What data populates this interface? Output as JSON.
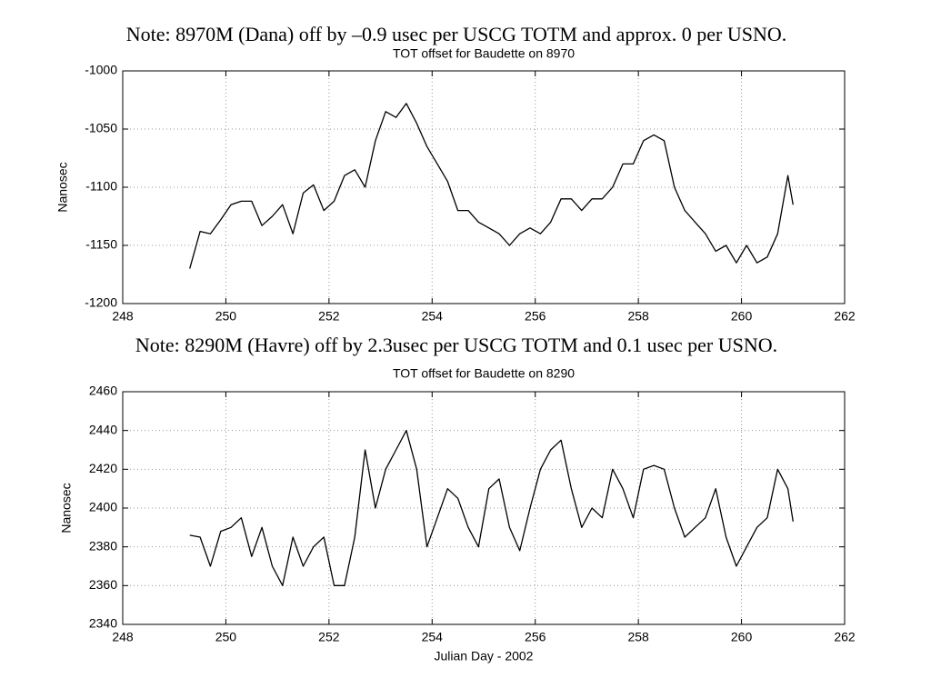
{
  "chart_data": [
    {
      "type": "line",
      "annotations": [
        "Note: 8970M (Dana) off by –0.9 usec per USCG TOTM and approx. 0  per USNO."
      ],
      "title": "TOT offset for Baudette on 8970",
      "ylabel": "Nanosec",
      "color": "#000000",
      "grid": true,
      "xlim": [
        248,
        262
      ],
      "xticks": [
        248,
        250,
        252,
        254,
        256,
        258,
        260,
        262
      ],
      "ylim": [
        -1200,
        -1000
      ],
      "yticks": [
        -1200,
        -1150,
        -1100,
        -1050,
        -1000
      ],
      "x": [
        249.3,
        249.5,
        249.7,
        249.9,
        250.1,
        250.3,
        250.5,
        250.7,
        250.9,
        251.1,
        251.3,
        251.5,
        251.7,
        251.9,
        252.1,
        252.3,
        252.5,
        252.7,
        252.9,
        253.1,
        253.3,
        253.5,
        253.7,
        253.9,
        254.1,
        254.3,
        254.5,
        254.7,
        254.9,
        255.1,
        255.3,
        255.5,
        255.7,
        255.9,
        256.1,
        256.3,
        256.5,
        256.7,
        256.9,
        257.1,
        257.3,
        257.5,
        257.7,
        257.9,
        258.1,
        258.3,
        258.5,
        258.7,
        258.9,
        259.1,
        259.3,
        259.5,
        259.7,
        259.9,
        260.1,
        260.3,
        260.5,
        260.7,
        260.9,
        261.0
      ],
      "values": [
        -1170,
        -1138,
        -1140,
        -1128,
        -1115,
        -1112,
        -1112,
        -1133,
        -1125,
        -1115,
        -1140,
        -1105,
        -1098,
        -1120,
        -1112,
        -1090,
        -1085,
        -1100,
        -1060,
        -1035,
        -1040,
        -1028,
        -1045,
        -1065,
        -1080,
        -1095,
        -1120,
        -1120,
        -1130,
        -1135,
        -1140,
        -1150,
        -1140,
        -1135,
        -1140,
        -1130,
        -1110,
        -1110,
        -1120,
        -1110,
        -1110,
        -1100,
        -1080,
        -1080,
        -1060,
        -1055,
        -1060,
        -1100,
        -1120,
        -1130,
        -1140,
        -1155,
        -1150,
        -1165,
        -1150,
        -1165,
        -1160,
        -1140,
        -1090,
        -1115
      ]
    },
    {
      "type": "line",
      "annotations": [
        "Note: 8290M (Havre) off by 2.3usec per USCG TOTM and 0.1 usec per USNO."
      ],
      "title": "TOT offset for Baudette on 8290",
      "ylabel": "Nanosec",
      "xlabel": "Julian Day - 2002",
      "color": "#000000",
      "grid": true,
      "xlim": [
        248,
        262
      ],
      "xticks": [
        248,
        250,
        252,
        254,
        256,
        258,
        260,
        262
      ],
      "ylim": [
        2340,
        2460
      ],
      "yticks": [
        2340,
        2360,
        2380,
        2400,
        2420,
        2440,
        2460
      ],
      "x": [
        249.3,
        249.5,
        249.7,
        249.9,
        250.1,
        250.3,
        250.5,
        250.7,
        250.9,
        251.1,
        251.3,
        251.5,
        251.7,
        251.9,
        252.1,
        252.3,
        252.5,
        252.7,
        252.9,
        253.1,
        253.3,
        253.5,
        253.7,
        253.9,
        254.1,
        254.3,
        254.5,
        254.7,
        254.9,
        255.1,
        255.3,
        255.5,
        255.7,
        255.9,
        256.1,
        256.3,
        256.5,
        256.7,
        256.9,
        257.1,
        257.3,
        257.5,
        257.7,
        257.9,
        258.1,
        258.3,
        258.5,
        258.7,
        258.9,
        259.1,
        259.3,
        259.5,
        259.7,
        259.9,
        260.1,
        260.3,
        260.5,
        260.7,
        260.9,
        261.0
      ],
      "values": [
        2386,
        2385,
        2370,
        2388,
        2390,
        2395,
        2375,
        2390,
        2370,
        2360,
        2385,
        2370,
        2380,
        2385,
        2360,
        2360,
        2385,
        2430,
        2400,
        2420,
        2430,
        2440,
        2420,
        2380,
        2395,
        2410,
        2405,
        2390,
        2380,
        2410,
        2415,
        2390,
        2378,
        2400,
        2420,
        2430,
        2435,
        2410,
        2390,
        2400,
        2395,
        2420,
        2410,
        2395,
        2420,
        2422,
        2420,
        2400,
        2385,
        2390,
        2395,
        2410,
        2385,
        2370,
        2380,
        2390,
        2395,
        2420,
        2410,
        2393
      ]
    }
  ]
}
